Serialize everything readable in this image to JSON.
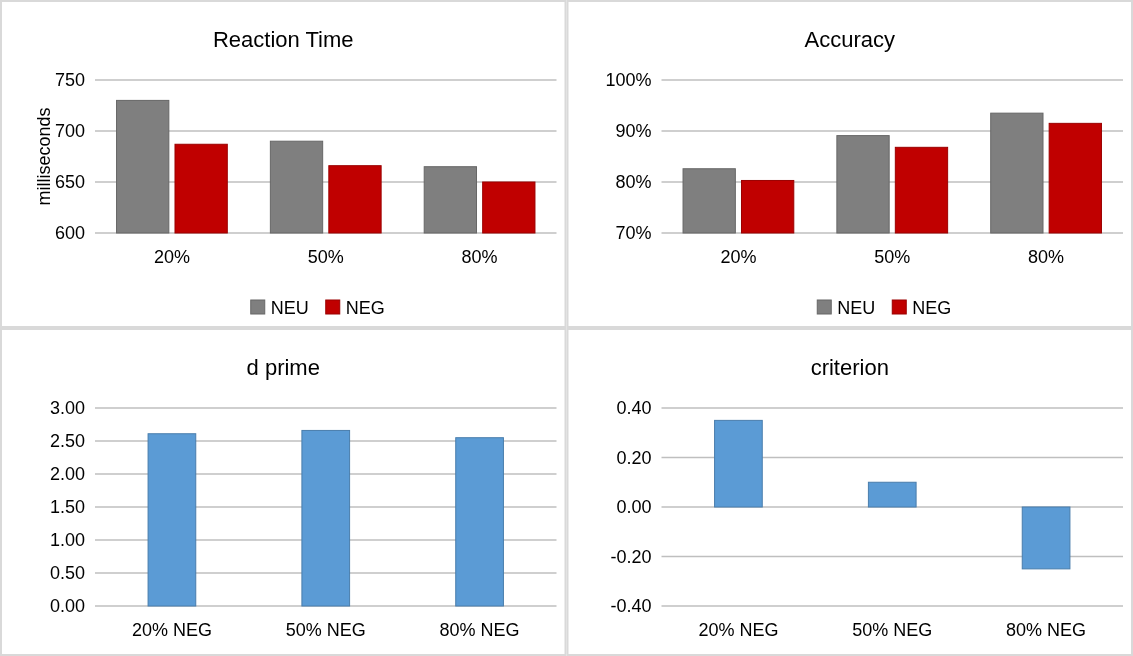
{
  "chart_data": [
    {
      "type": "bar",
      "title": "Reaction Time",
      "ylabel": "milliseconds",
      "categories": [
        "20%",
        "50%",
        "80%"
      ],
      "series": [
        {
          "name": "NEU",
          "color": "#7f7f7f",
          "values": [
            730,
            690,
            665
          ]
        },
        {
          "name": "NEG",
          "color": "#c00000",
          "values": [
            687,
            666,
            650
          ]
        }
      ],
      "ylim": [
        600,
        750
      ],
      "yticks": [
        600,
        650,
        700,
        750
      ],
      "grid": "y",
      "legend": "bottom"
    },
    {
      "type": "bar",
      "title": "Accuracy",
      "categories": [
        "20%",
        "50%",
        "80%"
      ],
      "series": [
        {
          "name": "NEU",
          "color": "#7f7f7f",
          "values": [
            82.6,
            89.1,
            93.5
          ]
        },
        {
          "name": "NEG",
          "color": "#c00000",
          "values": [
            80.3,
            86.8,
            91.5
          ]
        }
      ],
      "ylim": [
        70,
        100
      ],
      "yticks": [
        {
          "value": 70,
          "label": "70%"
        },
        {
          "value": 80,
          "label": "80%"
        },
        {
          "value": 90,
          "label": "90%"
        },
        {
          "value": 100,
          "label": "100%"
        }
      ],
      "grid": "y",
      "legend": "bottom"
    },
    {
      "type": "bar",
      "title": "d prime",
      "categories": [
        "20% NEG",
        "50% NEG",
        "80% NEG"
      ],
      "series": [
        {
          "color": "#5b9bd5",
          "values": [
            2.61,
            2.66,
            2.55
          ]
        }
      ],
      "ylim": [
        0,
        3
      ],
      "yticks": [
        {
          "value": 0,
          "label": "0.00"
        },
        {
          "value": 0.5,
          "label": "0.50"
        },
        {
          "value": 1,
          "label": "1.00"
        },
        {
          "value": 1.5,
          "label": "1.50"
        },
        {
          "value": 2,
          "label": "2.00"
        },
        {
          "value": 2.5,
          "label": "2.50"
        },
        {
          "value": 3,
          "label": "3.00"
        }
      ],
      "grid": "y"
    },
    {
      "type": "bar",
      "title": "criterion",
      "categories": [
        "20% NEG",
        "50% NEG",
        "80% NEG"
      ],
      "series": [
        {
          "color": "#5b9bd5",
          "values": [
            0.35,
            0.1,
            -0.25
          ]
        }
      ],
      "ylim": [
        -0.4,
        0.4
      ],
      "yticks": [
        {
          "value": -0.4,
          "label": "-0.40"
        },
        {
          "value": -0.2,
          "label": "-0.20"
        },
        {
          "value": 0,
          "label": "0.00"
        },
        {
          "value": 0.2,
          "label": "0.20"
        },
        {
          "value": 0.4,
          "label": "0.40"
        }
      ],
      "grid": "y"
    }
  ]
}
